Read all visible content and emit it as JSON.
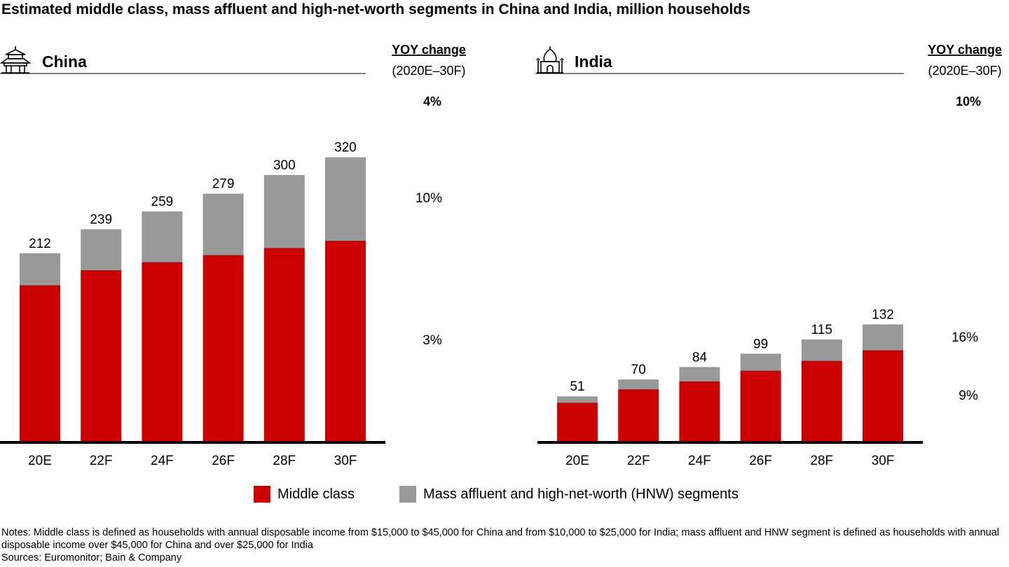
{
  "title": "Estimated middle class, mass affluent and high-net-worth segments in China and India, million households",
  "colors": {
    "middle_class": "#cc0000",
    "affluent_hnw": "#999999",
    "axis": "#000000",
    "rule": "#000000"
  },
  "chart_data": [
    {
      "type": "bar",
      "stacked": true,
      "panel_title": "China",
      "icon": "pagoda-icon",
      "yoy_header": "YOY change",
      "yoy_period": "(2020E–30F)",
      "yoy_total": "4%",
      "yoy_segments": {
        "affluent_hnw": "10%",
        "middle_class": "3%"
      },
      "categories": [
        "20E",
        "22F",
        "24F",
        "26F",
        "28F",
        "30F"
      ],
      "totals": [
        212,
        239,
        259,
        279,
        300,
        320
      ],
      "series": [
        {
          "name": "Middle class",
          "key": "middle_class",
          "values": [
            176,
            193,
            202,
            210,
            218,
            226
          ]
        },
        {
          "name": "Mass affluent and high-net-worth (HNW) segments",
          "key": "affluent_hnw",
          "values": [
            36,
            46,
            57,
            69,
            82,
            94
          ]
        }
      ]
    },
    {
      "type": "bar",
      "stacked": true,
      "panel_title": "India",
      "icon": "taj-mahal-icon",
      "yoy_header": "YOY change",
      "yoy_period": "(2020E–30F)",
      "yoy_total": "10%",
      "yoy_segments": {
        "affluent_hnw": "16%",
        "middle_class": "9%"
      },
      "categories": [
        "20E",
        "22F",
        "24F",
        "26F",
        "28F",
        "30F"
      ],
      "totals": [
        51,
        70,
        84,
        99,
        115,
        132
      ],
      "series": [
        {
          "name": "Middle class",
          "key": "middle_class",
          "values": [
            44,
            59,
            68,
            80,
            91,
            103
          ]
        },
        {
          "name": "Mass affluent and high-net-worth (HNW) segments",
          "key": "affluent_hnw",
          "values": [
            7,
            11,
            16,
            19,
            24,
            29
          ]
        }
      ]
    }
  ],
  "legend": {
    "middle_class": "Middle class",
    "affluent_hnw": "Mass affluent and high-net-worth (HNW) segments"
  },
  "notes": "Notes: Middle class is defined as households with annual disposable income from $15,000 to $45,000 for China and from $10,000 to $25,000 for India; mass affluent and HNW segment is defined as households with annual disposable income over $45,000 for China and over $25,000 for India",
  "sources": "Sources: Euromonitor; Bain & Company"
}
